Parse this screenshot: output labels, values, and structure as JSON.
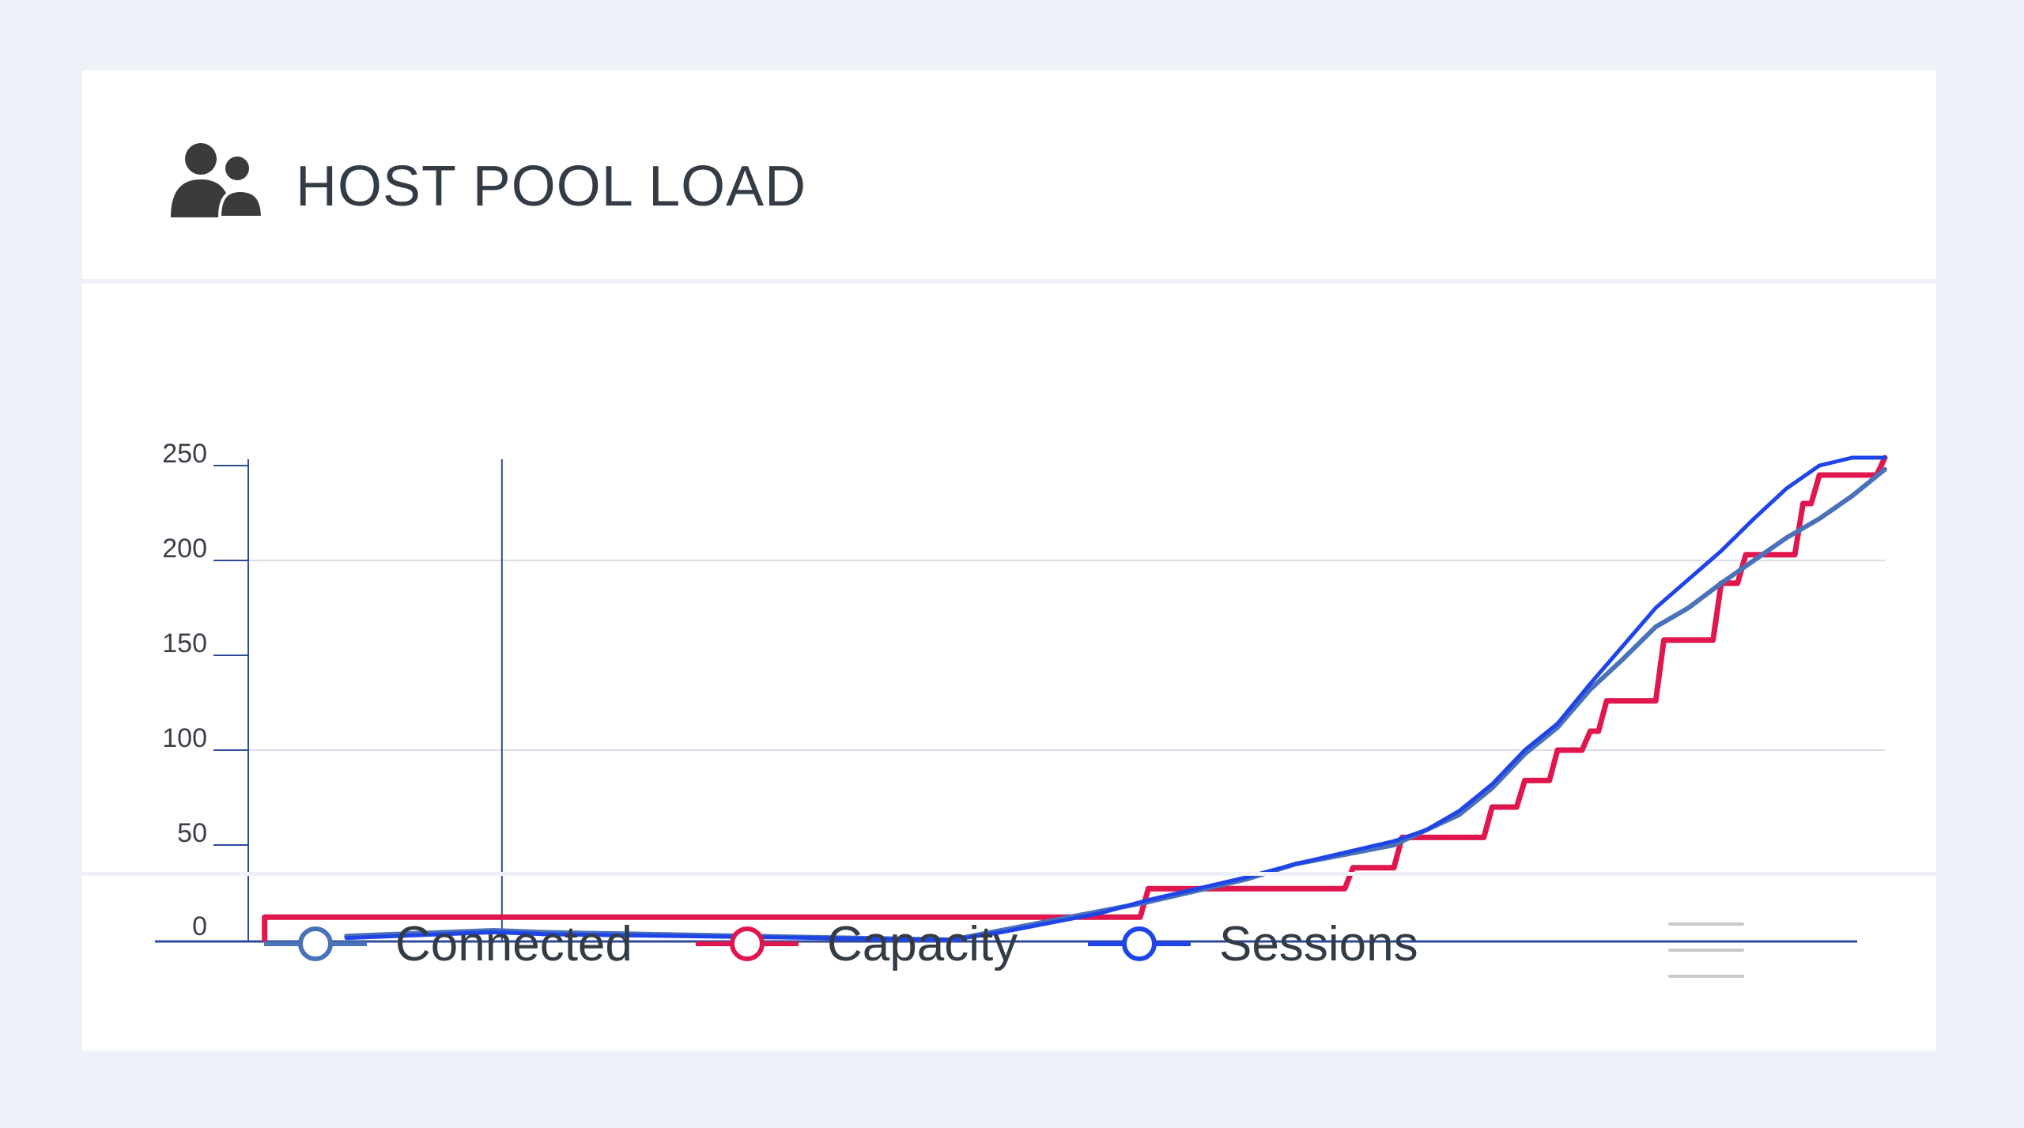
{
  "title": "HOST POOL LOAD",
  "icons": {
    "header": "users-icon",
    "menu": "hamburger-menu-icon"
  },
  "colors": {
    "background": "#eef1f8",
    "connected": "#4a72b8",
    "capacity": "#e0174f",
    "sessions": "#1f45e8",
    "axis": "#2f4a9a",
    "grid": "#dadde8",
    "text": "#333b45"
  },
  "legend": [
    {
      "label": "Connected",
      "series": "connected"
    },
    {
      "label": "Capacity",
      "series": "capacity"
    },
    {
      "label": "Sessions",
      "series": "sessions"
    }
  ],
  "chart_data": {
    "type": "line",
    "title": "HOST POOL LOAD",
    "xlabel": "",
    "ylabel": "",
    "ylim": [
      0,
      250
    ],
    "yticks": [
      "0",
      "50",
      "100",
      "150",
      "200",
      "250"
    ],
    "grid": true,
    "legend_position": "bottom",
    "cursor_x": 15.5,
    "x_range": [
      0,
      100
    ],
    "series": [
      {
        "name": "Capacity",
        "key": "capacity",
        "x": [
          1,
          1,
          47,
          47.5,
          54.5,
          55,
          62,
          62.5,
          67,
          67.5,
          70,
          70.5,
          75.5,
          76,
          77.5,
          78,
          79.5,
          80,
          81.5,
          82,
          82.5,
          83,
          86,
          86.5,
          89.5,
          90,
          91,
          91.5,
          94.5,
          95,
          95.5,
          96,
          99.5,
          100,
          100,
          100,
          100,
          100,
          100,
          100,
          100,
          100,
          100,
          100,
          100,
          100,
          100,
          100,
          100,
          100,
          100,
          100,
          100
        ],
        "values": [
          0,
          12,
          12,
          12,
          12,
          27,
          27,
          27,
          27,
          38,
          38,
          54,
          54,
          70,
          70,
          84,
          84,
          100,
          100,
          110,
          110,
          126,
          126,
          158,
          158,
          188,
          188,
          203,
          203,
          230,
          230,
          245,
          245,
          258,
          258,
          258,
          258,
          258,
          258,
          258,
          258,
          258,
          258,
          258,
          258,
          258,
          258,
          258,
          258,
          258,
          258,
          258,
          258
        ]
      },
      {
        "name": "Connected",
        "key": "connected",
        "x": [
          6,
          9,
          12,
          15,
          18,
          43,
          46,
          49,
          52,
          55,
          58,
          61,
          64,
          67,
          70,
          72,
          74,
          76,
          78,
          80,
          82,
          84,
          86,
          88,
          90,
          92,
          94,
          96,
          98,
          100
        ],
        "values": [
          2,
          3,
          4,
          5,
          4,
          0,
          5,
          10,
          15,
          20,
          26,
          32,
          40,
          45,
          50,
          58,
          66,
          80,
          98,
          112,
          132,
          148,
          165,
          175,
          188,
          200,
          212,
          222,
          234,
          248
        ]
      },
      {
        "name": "Sessions",
        "key": "sessions",
        "x": [
          6,
          9,
          12,
          15,
          18,
          43,
          46,
          49,
          52,
          55,
          58,
          61,
          64,
          67,
          70,
          72,
          74,
          76,
          78,
          80,
          82,
          84,
          86,
          88,
          90,
          92,
          94,
          96,
          98,
          100
        ],
        "values": [
          1,
          2,
          3,
          4,
          3,
          0,
          4,
          9,
          14,
          21,
          27,
          33,
          40,
          46,
          52,
          58,
          68,
          82,
          100,
          114,
          135,
          155,
          175,
          190,
          205,
          222,
          238,
          250,
          258,
          262
        ]
      }
    ]
  }
}
